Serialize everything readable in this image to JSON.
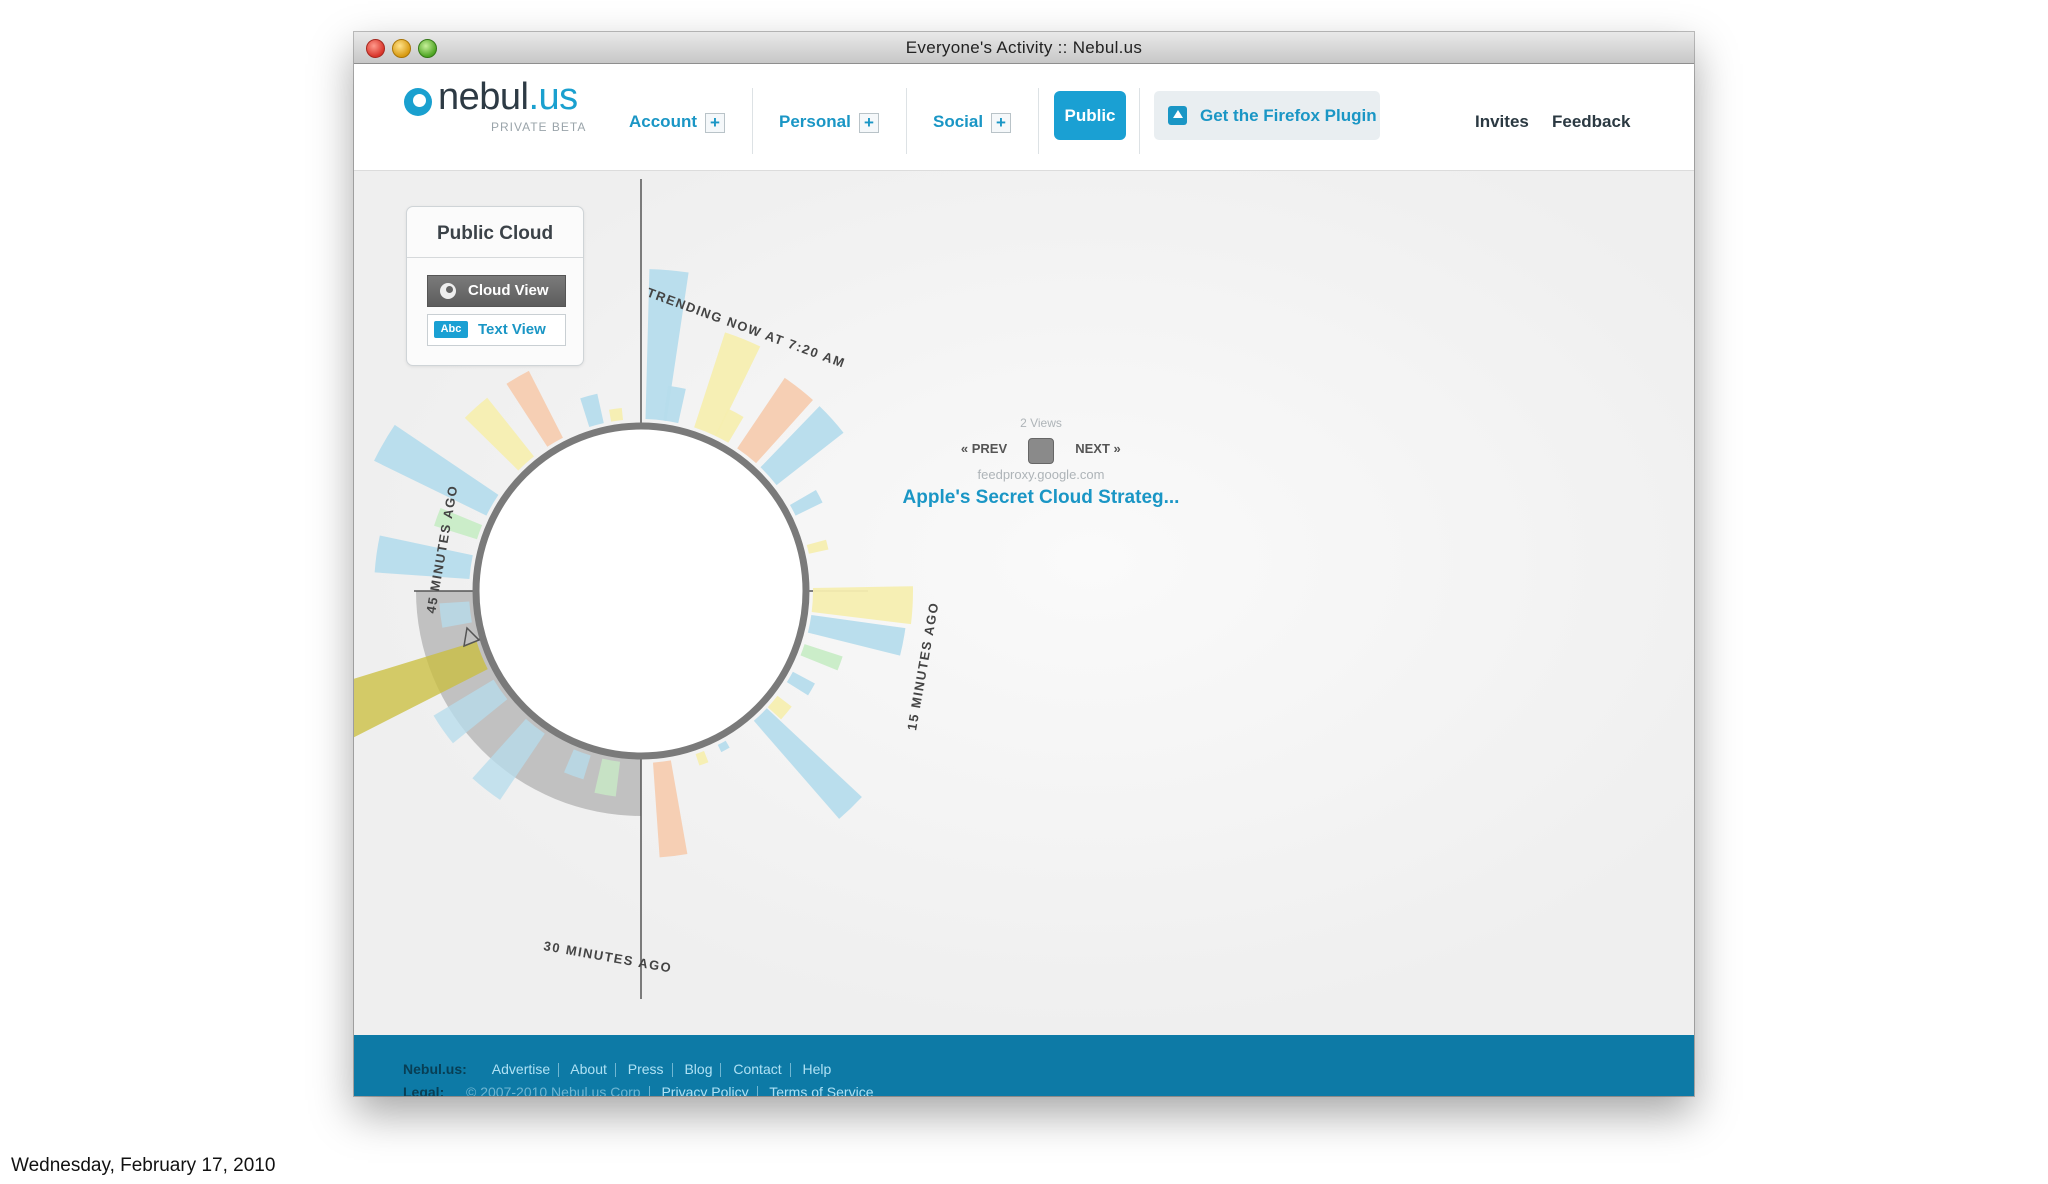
{
  "window": {
    "title": "Everyone's Activity :: Nebul.us"
  },
  "logo": {
    "name": "nebul",
    "tld": ".us",
    "tagline": "PRIVATE BETA"
  },
  "nav": {
    "items": [
      {
        "label": "Account"
      },
      {
        "label": "Personal"
      },
      {
        "label": "Social"
      }
    ],
    "active": "Public",
    "firefox_label": "Get the Firefox Plugin",
    "right_links": [
      "Invites",
      "Feedback"
    ]
  },
  "panel": {
    "title": "Public Cloud",
    "cloud_view": "Cloud View",
    "text_view": "Text View",
    "abc": "Abc"
  },
  "viz": {
    "views": "2 Views",
    "prev": "« PREV",
    "next": "NEXT »",
    "source": "feedproxy.google.com",
    "headline": "Apple's Secret Cloud Strateg...",
    "labels": {
      "trending": "TRENDING NOW AT 7:20 AM",
      "m15": "15 MINUTES AGO",
      "m30": "30 MINUTES AGO",
      "m45": "45 MINUTES AGO"
    }
  },
  "footer": {
    "brand": "Nebul.us:",
    "links": [
      "Advertise",
      "About",
      "Press",
      "Blog",
      "Contact",
      "Help"
    ],
    "legal_label": "Legal:",
    "legal_items": [
      "© 2007-2010 Nebul.us Corp",
      "Privacy Policy",
      "Terms of Service"
    ]
  },
  "slide_date": "Wednesday, February 17, 2010",
  "colors": {
    "accent": "#1aa0d3",
    "footer": "#0d7aa6",
    "blue_bar": "#b6dcec",
    "yellow_bar": "#f6eeb0",
    "orange_bar": "#f6ccb0",
    "green_bar": "#c8ecc6"
  }
}
